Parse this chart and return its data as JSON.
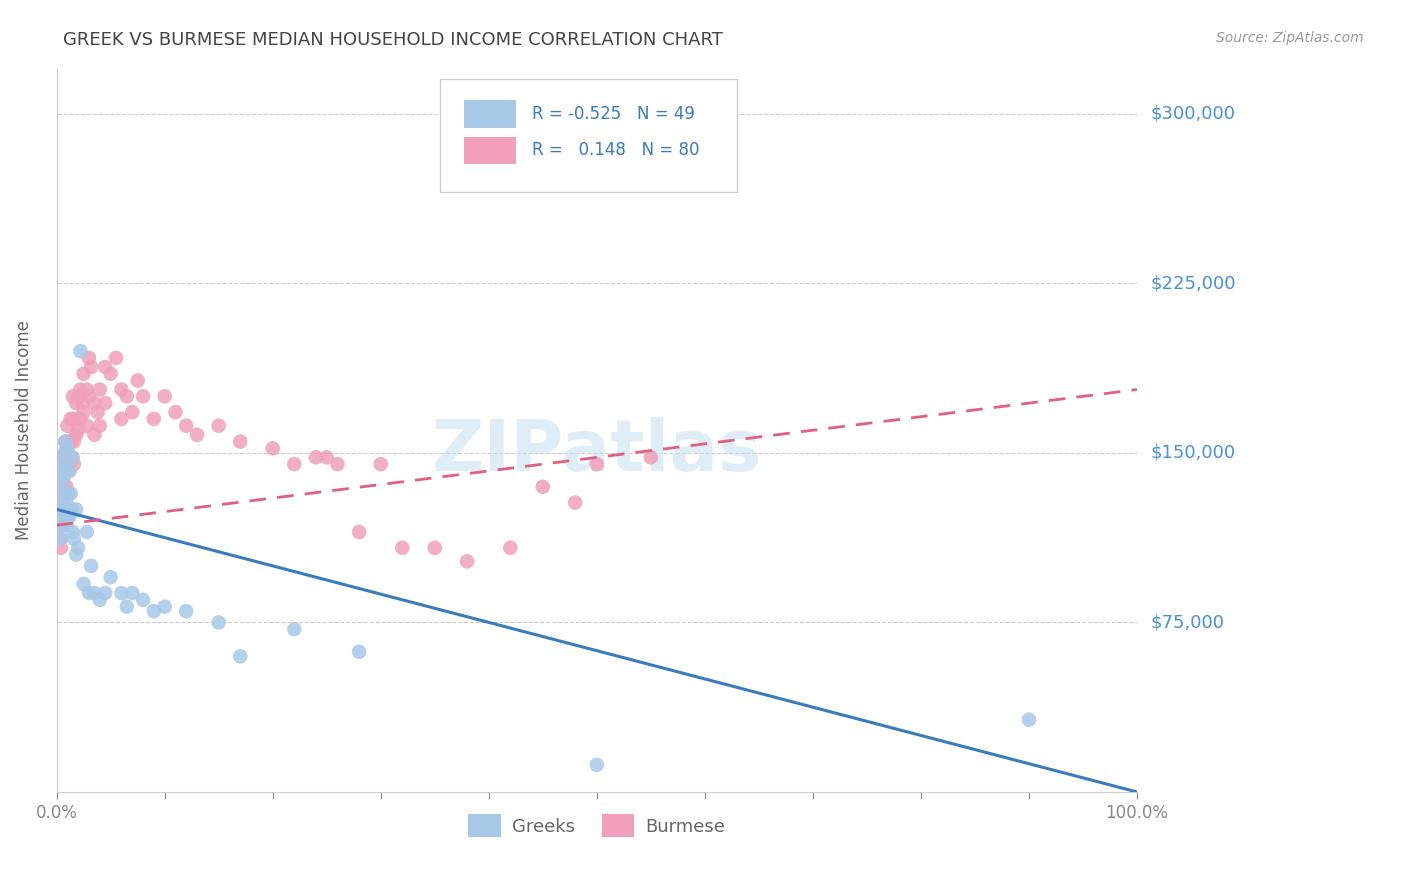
{
  "title": "GREEK VS BURMESE MEDIAN HOUSEHOLD INCOME CORRELATION CHART",
  "source": "Source: ZipAtlas.com",
  "ylabel": "Median Household Income",
  "ylim": [
    0,
    320000
  ],
  "xlim": [
    0.0,
    1.0
  ],
  "watermark": "ZIPatlas",
  "greek_color": "#a8c8e8",
  "burmese_color": "#f0a0b8",
  "trendline_greek_color": "#3a7abf",
  "trendline_burmese_color": "#e06080",
  "background_color": "#ffffff",
  "title_color": "#444444",
  "grid_color": "#cccccc",
  "right_label_color": "#4a90d9",
  "marker_size": 110,
  "greek_x": [
    0.002,
    0.003,
    0.004,
    0.004,
    0.005,
    0.005,
    0.006,
    0.006,
    0.007,
    0.007,
    0.008,
    0.008,
    0.009,
    0.009,
    0.01,
    0.01,
    0.011,
    0.012,
    0.012,
    0.013,
    0.014,
    0.015,
    0.015,
    0.016,
    0.018,
    0.018,
    0.02,
    0.022,
    0.025,
    0.028,
    0.03,
    0.032,
    0.035,
    0.04,
    0.045,
    0.05,
    0.06,
    0.065,
    0.07,
    0.08,
    0.09,
    0.1,
    0.12,
    0.15,
    0.17,
    0.22,
    0.28,
    0.9,
    0.5
  ],
  "greek_y": [
    135000,
    125000,
    118000,
    112000,
    145000,
    138000,
    130000,
    120000,
    150000,
    140000,
    155000,
    143000,
    128000,
    118000,
    152000,
    132000,
    122000,
    142000,
    122000,
    132000,
    125000,
    148000,
    115000,
    112000,
    125000,
    105000,
    108000,
    195000,
    92000,
    115000,
    88000,
    100000,
    88000,
    85000,
    88000,
    95000,
    88000,
    82000,
    88000,
    85000,
    80000,
    82000,
    80000,
    75000,
    60000,
    72000,
    62000,
    32000,
    12000
  ],
  "burmese_x": [
    0.002,
    0.003,
    0.003,
    0.004,
    0.004,
    0.005,
    0.005,
    0.006,
    0.006,
    0.007,
    0.007,
    0.008,
    0.008,
    0.009,
    0.009,
    0.01,
    0.01,
    0.011,
    0.011,
    0.012,
    0.012,
    0.013,
    0.013,
    0.014,
    0.015,
    0.015,
    0.016,
    0.016,
    0.018,
    0.018,
    0.019,
    0.02,
    0.02,
    0.022,
    0.022,
    0.024,
    0.025,
    0.025,
    0.028,
    0.028,
    0.03,
    0.03,
    0.032,
    0.035,
    0.035,
    0.038,
    0.04,
    0.04,
    0.045,
    0.045,
    0.05,
    0.055,
    0.06,
    0.06,
    0.065,
    0.07,
    0.075,
    0.08,
    0.09,
    0.1,
    0.11,
    0.12,
    0.13,
    0.15,
    0.17,
    0.2,
    0.25,
    0.3,
    0.5,
    0.55,
    0.35,
    0.28,
    0.32,
    0.38,
    0.42,
    0.26,
    0.24,
    0.22,
    0.45,
    0.48
  ],
  "burmese_y": [
    122000,
    118000,
    112000,
    108000,
    125000,
    148000,
    138000,
    128000,
    118000,
    142000,
    132000,
    155000,
    145000,
    135000,
    125000,
    162000,
    152000,
    142000,
    132000,
    155000,
    145000,
    165000,
    155000,
    148000,
    175000,
    165000,
    155000,
    145000,
    172000,
    158000,
    165000,
    175000,
    160000,
    178000,
    165000,
    172000,
    185000,
    168000,
    178000,
    162000,
    192000,
    175000,
    188000,
    172000,
    158000,
    168000,
    178000,
    162000,
    188000,
    172000,
    185000,
    192000,
    178000,
    165000,
    175000,
    168000,
    182000,
    175000,
    165000,
    175000,
    168000,
    162000,
    158000,
    162000,
    155000,
    152000,
    148000,
    145000,
    145000,
    148000,
    108000,
    115000,
    108000,
    102000,
    108000,
    145000,
    148000,
    145000,
    135000,
    128000
  ]
}
